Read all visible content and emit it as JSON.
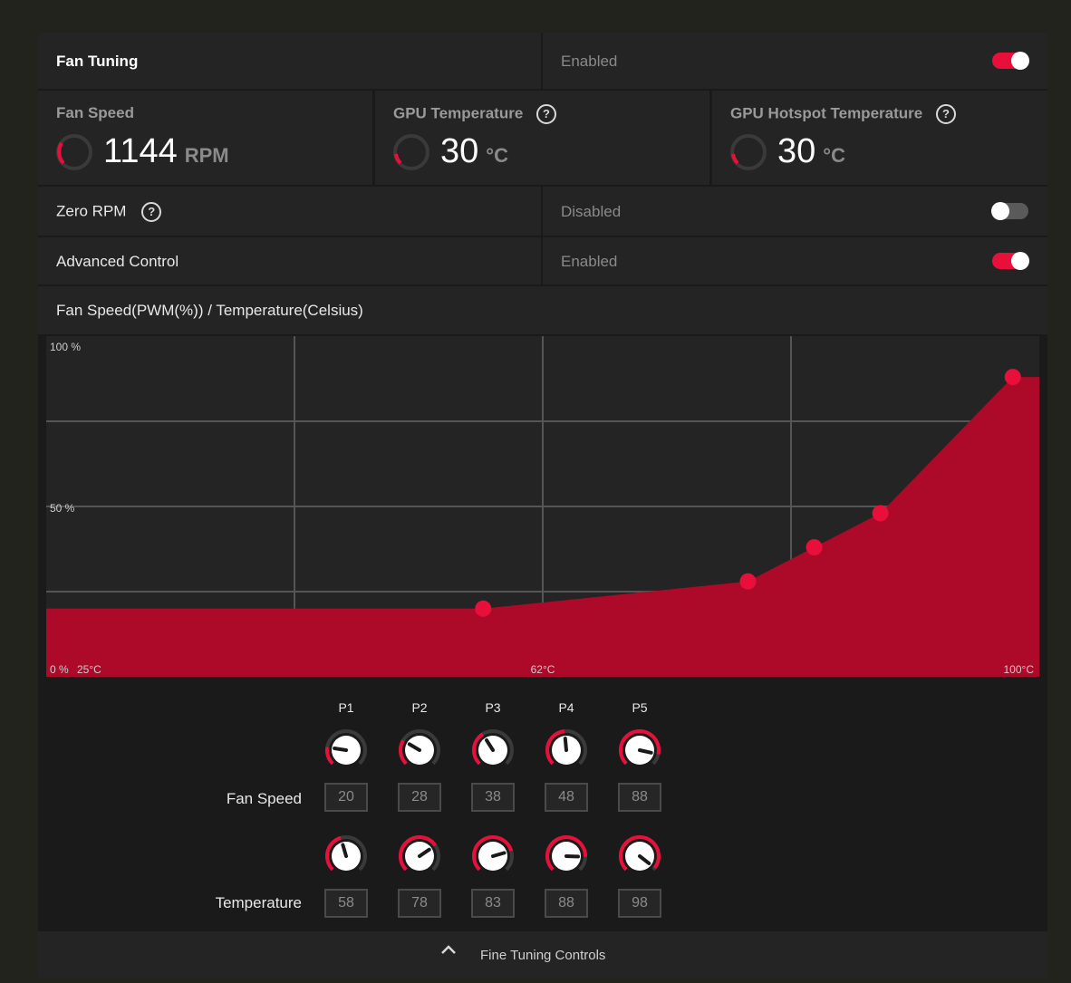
{
  "fan_tuning": {
    "label": "Fan Tuning",
    "status": "Enabled",
    "enabled": true
  },
  "metrics": {
    "fan_speed": {
      "title": "Fan Speed",
      "value": "1144",
      "unit": "RPM"
    },
    "gpu_temp": {
      "title": "GPU Temperature",
      "value": "30",
      "unit": "°C"
    },
    "hotspot_temp": {
      "title": "GPU Hotspot Temperature",
      "value": "30",
      "unit": "°C"
    }
  },
  "zero_rpm": {
    "label": "Zero RPM",
    "status": "Disabled",
    "enabled": false
  },
  "advanced_control": {
    "label": "Advanced Control",
    "status": "Enabled",
    "enabled": true
  },
  "chart_header": "Fan Speed(PWM(%)) / Temperature(Celsius)",
  "help_glyph": "?",
  "chart_data": {
    "type": "area",
    "title": "",
    "y_ticks": [
      "100 %",
      "50 %",
      "0 %"
    ],
    "x_ticks": [
      "25°C",
      "62°C",
      "100°C"
    ],
    "xlim": [
      25,
      100
    ],
    "ylim": [
      0,
      100
    ],
    "grid": true,
    "series": [
      {
        "x": [
          58,
          78,
          83,
          88,
          98
        ],
        "y": [
          20,
          28,
          38,
          48,
          88
        ],
        "color": "#e8103b"
      }
    ]
  },
  "fine_tuning": {
    "points": [
      "P1",
      "P2",
      "P3",
      "P4",
      "P5"
    ],
    "fan_speed_label": "Fan Speed",
    "temperature_label": "Temperature",
    "fan_speed_values": [
      "20",
      "28",
      "38",
      "48",
      "88"
    ],
    "temperature_values": [
      "58",
      "78",
      "83",
      "88",
      "98"
    ],
    "temp_min": 25,
    "temp_max": 100
  },
  "footer": {
    "label": "Fine Tuning Controls",
    "icon": "chevron-up-icon"
  },
  "colors": {
    "accent": "#e8103b",
    "area": "#ad0a2a",
    "panel": "#242424",
    "background": "#1a1a1a"
  }
}
